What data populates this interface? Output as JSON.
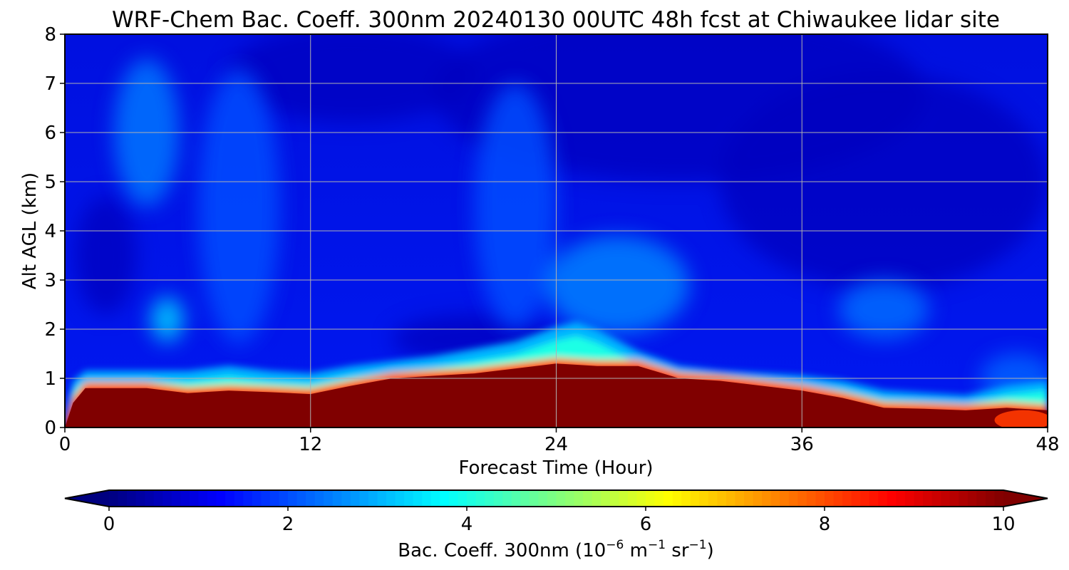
{
  "chart_data": {
    "type": "heatmap",
    "title": "WRF-Chem Bac. Coeff. 300nm  20240130 00UTC 48h fcst at Chiwaukee lidar site",
    "xlabel": "Forecast Time (Hour)",
    "ylabel": "Alt AGL (km)",
    "xlim": [
      0,
      48
    ],
    "ylim": [
      0,
      8
    ],
    "x_ticks": [
      "0",
      "12",
      "24",
      "36",
      "48"
    ],
    "y_ticks": [
      "0",
      "1",
      "2",
      "3",
      "4",
      "5",
      "6",
      "7",
      "8"
    ],
    "grid": true,
    "colormap": "jet",
    "colorbar": {
      "orientation": "horizontal",
      "extend": "both",
      "range": [
        0,
        10
      ],
      "ticks": [
        "0",
        "2",
        "4",
        "6",
        "8",
        "10"
      ],
      "label_main": "Bac. Coeff. 300nm  (10",
      "label_exp1": "−6",
      "label_unit1": " m",
      "label_exp2": "−1",
      "label_unit2": " sr",
      "label_exp3": "−1",
      "label_close": ")"
    },
    "surface_layer": {
      "description_units": "km",
      "x": [
        0,
        0.4,
        1,
        4,
        6,
        8,
        10,
        12,
        14,
        16,
        18,
        20,
        22,
        24,
        26,
        28,
        30,
        32,
        34,
        36,
        38,
        40,
        42,
        44,
        46,
        48
      ],
      "top": [
        0.0,
        0.5,
        0.8,
        0.8,
        0.7,
        0.75,
        0.72,
        0.68,
        0.85,
        1.0,
        1.05,
        1.1,
        1.2,
        1.3,
        1.25,
        1.25,
        1.0,
        0.95,
        0.85,
        0.75,
        0.6,
        0.4,
        0.38,
        0.35,
        0.4,
        0.35
      ],
      "value": 10
    },
    "transition_layer": {
      "x": [
        0,
        0.4,
        1,
        4,
        6,
        8,
        10,
        12,
        14,
        16,
        18,
        20,
        22,
        24,
        25,
        26,
        28,
        30,
        32,
        34,
        36,
        38,
        40,
        42,
        44,
        46,
        48
      ],
      "top": [
        0.0,
        0.8,
        1.0,
        1.0,
        1.0,
        1.1,
        1.0,
        0.95,
        1.1,
        1.2,
        1.3,
        1.45,
        1.6,
        1.9,
        2.0,
        1.85,
        1.4,
        1.1,
        1.0,
        0.95,
        0.9,
        0.8,
        0.6,
        0.55,
        0.5,
        0.7,
        0.8
      ]
    },
    "plumes": [
      {
        "x": 4,
        "y": 6.0,
        "rx": 1.6,
        "ry": 1.5,
        "value": 2.4
      },
      {
        "x": 5,
        "y": 2.2,
        "rx": 0.8,
        "ry": 0.45,
        "value": 3.3
      },
      {
        "x": 8.5,
        "y": 4.5,
        "rx": 2.0,
        "ry": 2.8,
        "value": 2.0
      },
      {
        "x": 22,
        "y": 4.5,
        "rx": 2.0,
        "ry": 2.5,
        "value": 2.0
      },
      {
        "x": 27,
        "y": 2.9,
        "rx": 3.5,
        "ry": 1.0,
        "value": 2.5
      },
      {
        "x": 40,
        "y": 2.4,
        "rx": 2.2,
        "ry": 0.6,
        "value": 2.3
      },
      {
        "x": 46.5,
        "y": 1.0,
        "rx": 1.8,
        "ry": 0.5,
        "value": 2.2
      }
    ],
    "background_value": 1.1,
    "upper_dark_value": 0.6
  }
}
